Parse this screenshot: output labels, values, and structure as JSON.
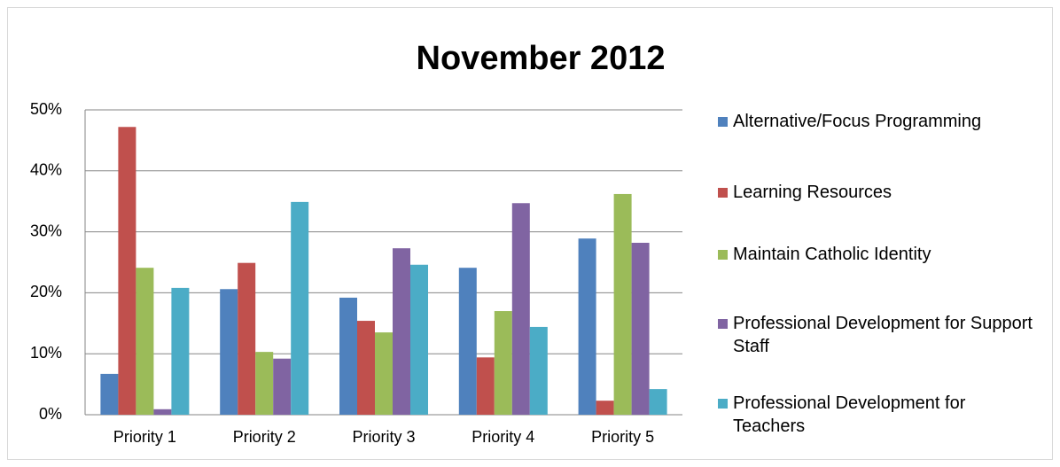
{
  "chart_data": {
    "type": "bar",
    "title": "November 2012",
    "categories": [
      "Priority 1",
      "Priority 2",
      "Priority 3",
      "Priority 4",
      "Priority 5"
    ],
    "series": [
      {
        "name": "Alternative/Focus Programming",
        "color": "#4f81bd",
        "values": [
          6.7,
          20.6,
          19.2,
          24.1,
          28.9
        ]
      },
      {
        "name": "Learning Resources",
        "color": "#c0504d",
        "values": [
          47.2,
          24.9,
          15.4,
          9.4,
          2.3
        ]
      },
      {
        "name": "Maintain Catholic Identity",
        "color": "#9bbb59",
        "values": [
          24.1,
          10.3,
          13.5,
          17.0,
          36.2
        ]
      },
      {
        "name": "Professional Development for Support Staff",
        "color": "#8064a2",
        "values": [
          0.9,
          9.2,
          27.3,
          34.7,
          28.2
        ]
      },
      {
        "name": "Professional Development for Teachers",
        "color": "#4bacc6",
        "values": [
          20.8,
          34.9,
          24.6,
          14.4,
          4.2
        ]
      }
    ],
    "ylim": [
      0,
      50
    ],
    "yticks": [
      {
        "value": 0,
        "label": "0%"
      },
      {
        "value": 10,
        "label": "10%"
      },
      {
        "value": 20,
        "label": "20%"
      },
      {
        "value": 30,
        "label": "30%"
      },
      {
        "value": 40,
        "label": "40%"
      },
      {
        "value": 50,
        "label": "50%"
      }
    ],
    "grid": true,
    "legend": "right"
  }
}
